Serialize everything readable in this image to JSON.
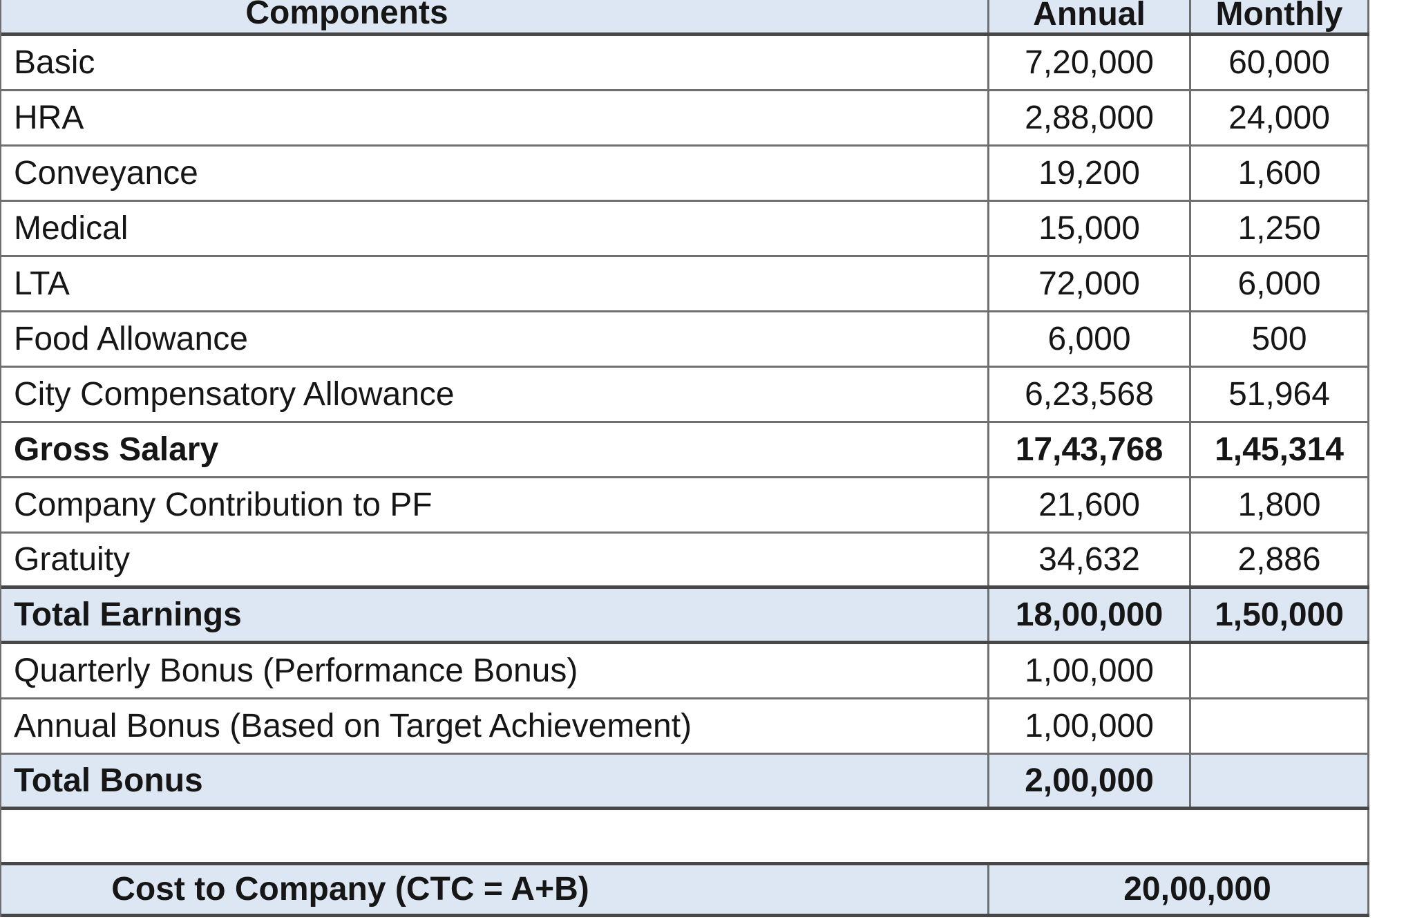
{
  "table": {
    "header": {
      "components": "Components",
      "annual": "Annual",
      "monthly": "Monthly"
    },
    "rows": [
      {
        "label": "Basic",
        "annual": "7,20,000",
        "monthly": "60,000"
      },
      {
        "label": "HRA",
        "annual": "2,88,000",
        "monthly": "24,000"
      },
      {
        "label": "Conveyance",
        "annual": "19,200",
        "monthly": "1,600"
      },
      {
        "label": "Medical",
        "annual": "15,000",
        "monthly": "1,250"
      },
      {
        "label": "LTA",
        "annual": "72,000",
        "monthly": "6,000"
      },
      {
        "label": "Food Allowance",
        "annual": "6,000",
        "monthly": "500"
      },
      {
        "label": "City Compensatory Allowance",
        "annual": "6,23,568",
        "monthly": "51,964"
      },
      {
        "label": "Gross Salary",
        "annual": "17,43,768",
        "monthly": "1,45,314"
      },
      {
        "label": "Company Contribution to PF",
        "annual": "21,600",
        "monthly": "1,800"
      },
      {
        "label": "Gratuity",
        "annual": "34,632",
        "monthly": "2,886"
      },
      {
        "label": "Total Earnings",
        "annual": "18,00,000",
        "monthly": "1,50,000"
      },
      {
        "label": "Quarterly Bonus (Performance Bonus)",
        "annual": "1,00,000",
        "monthly": ""
      },
      {
        "label": "Annual Bonus (Based on Target Achievement)",
        "annual": "1,00,000",
        "monthly": ""
      },
      {
        "label": "Total Bonus",
        "annual": "2,00,000",
        "monthly": ""
      }
    ],
    "footer": {
      "label": "Cost to Company (CTC = A+B)",
      "value": "20,00,000"
    }
  },
  "colors": {
    "highlight": "#dde7f3",
    "grid": "#6f6f6f",
    "thick": "#474747",
    "text": "#161616"
  }
}
